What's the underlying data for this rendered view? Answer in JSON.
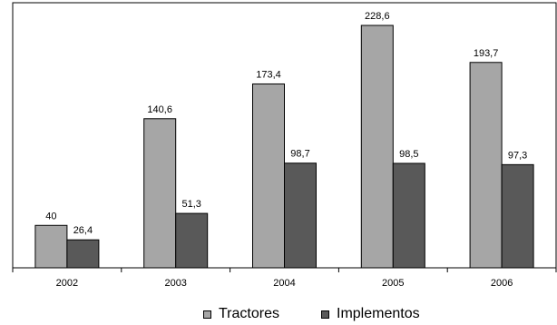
{
  "chart_data": {
    "type": "bar",
    "categories": [
      "2002",
      "2003",
      "2004",
      "2005",
      "2006"
    ],
    "series": [
      {
        "name": "Tractores",
        "values": [
          40,
          140.6,
          173.4,
          228.6,
          193.7
        ],
        "labels": [
          "40",
          "140,6",
          "173,4",
          "228,6",
          "193,7"
        ],
        "color": "#a6a6a6"
      },
      {
        "name": "Implementos",
        "values": [
          26.4,
          51.3,
          98.7,
          98.5,
          97.3
        ],
        "labels": [
          "26,4",
          "51,3",
          "98,7",
          "98,5",
          "97,3"
        ],
        "color": "#595959"
      }
    ],
    "ylim": [
      0,
      250
    ],
    "grid": false,
    "legend": "bottom"
  }
}
